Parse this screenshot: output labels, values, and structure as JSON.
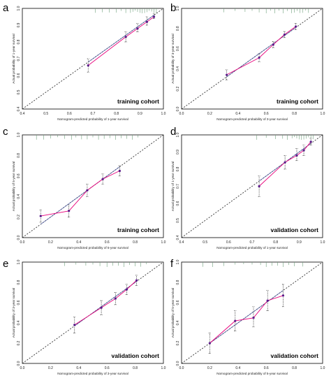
{
  "chart_data": [
    {
      "panel": "a",
      "type": "scatter",
      "cohort_label": "training cohort",
      "xlabel": "Nomogram-predicted probability of 1-year survival",
      "ylabel": "Actual probability of 1-year survival",
      "xlim": [
        0.4,
        1.0
      ],
      "ylim": [
        0.4,
        1.0
      ],
      "xticks": [
        "0.4",
        "0.5",
        "0.6",
        "0.7",
        "0.8",
        "0.9",
        "1.0"
      ],
      "yticks": [
        "0.4",
        "0.5",
        "0.6",
        "0.7",
        "0.8",
        "0.9",
        "1.0"
      ],
      "x": [
        0.68,
        0.84,
        0.89,
        0.93,
        0.96
      ],
      "y": [
        0.66,
        0.83,
        0.88,
        0.92,
        0.95
      ],
      "ci_low": [
        0.62,
        0.8,
        0.86,
        0.9,
        0.94
      ],
      "ci_high": [
        0.7,
        0.86,
        0.91,
        0.95,
        0.97
      ],
      "rug": [
        0.71,
        0.74,
        0.77,
        0.8,
        0.82,
        0.84,
        0.86,
        0.87,
        0.88,
        0.89,
        0.9,
        0.91,
        0.92,
        0.93,
        0.94,
        0.95,
        0.96,
        0.97
      ]
    },
    {
      "panel": "b",
      "type": "scatter",
      "cohort_label": "training cohort",
      "xlabel": "Nomogram-predicted probability of 3-year survival",
      "ylabel": "Actual probability of 3-year survival",
      "xlim": [
        0.0,
        1.0
      ],
      "ylim": [
        0.0,
        1.0
      ],
      "xticks": [
        "0.0",
        "0.2",
        "0.4",
        "0.6",
        "0.8",
        "1.0"
      ],
      "yticks": [
        "0.0",
        "0.2",
        "0.4",
        "0.6",
        "0.8",
        "1.0"
      ],
      "x": [
        0.32,
        0.55,
        0.65,
        0.73,
        0.81
      ],
      "y": [
        0.34,
        0.51,
        0.64,
        0.74,
        0.82
      ],
      "ci_low": [
        0.29,
        0.47,
        0.61,
        0.71,
        0.79
      ],
      "ci_high": [
        0.39,
        0.55,
        0.67,
        0.77,
        0.85
      ],
      "rug": [
        0.3,
        0.38,
        0.45,
        0.5,
        0.55,
        0.6,
        0.63,
        0.66,
        0.69,
        0.72,
        0.75,
        0.78,
        0.8,
        0.82,
        0.84,
        0.86,
        0.88,
        0.9
      ]
    },
    {
      "panel": "c",
      "type": "scatter",
      "cohort_label": "training cohort",
      "xlabel": "Nomogram-predicted probability of 5-year survival",
      "ylabel": "Actual probability of 5-year survival",
      "xlim": [
        0.0,
        1.0
      ],
      "ylim": [
        0.0,
        1.0
      ],
      "xticks": [
        "0.0",
        "0.2",
        "0.4",
        "0.6",
        "0.8",
        "1.0"
      ],
      "yticks": [
        "0.0",
        "0.2",
        "0.4",
        "0.6",
        "0.8",
        "1.0"
      ],
      "x": [
        0.13,
        0.33,
        0.46,
        0.57,
        0.69
      ],
      "y": [
        0.21,
        0.26,
        0.46,
        0.57,
        0.65
      ],
      "ci_low": [
        0.15,
        0.2,
        0.4,
        0.52,
        0.6
      ],
      "ci_high": [
        0.27,
        0.32,
        0.52,
        0.62,
        0.7
      ],
      "rug": [
        0.1,
        0.15,
        0.2,
        0.25,
        0.3,
        0.35,
        0.38,
        0.42,
        0.46,
        0.5,
        0.54,
        0.58,
        0.62,
        0.66,
        0.7,
        0.74,
        0.78,
        0.82
      ]
    },
    {
      "panel": "d",
      "type": "scatter",
      "cohort_label": "validation cohort",
      "xlabel": "Nomogram-predicted probability of 1-year survival",
      "ylabel": "Actual probability of 1-year survival",
      "xlim": [
        0.4,
        1.0
      ],
      "ylim": [
        0.4,
        1.0
      ],
      "xticks": [
        "0.4",
        "0.5",
        "0.6",
        "0.7",
        "0.8",
        "0.9",
        "1.0"
      ],
      "yticks": [
        "0.4",
        "0.5",
        "0.6",
        "0.7",
        "0.8",
        "0.9",
        "1.0"
      ],
      "x": [
        0.73,
        0.84,
        0.89,
        0.92,
        0.95
      ],
      "y": [
        0.7,
        0.84,
        0.88,
        0.91,
        0.96
      ],
      "ci_low": [
        0.64,
        0.8,
        0.85,
        0.88,
        0.94
      ],
      "ci_high": [
        0.76,
        0.88,
        0.92,
        0.94,
        0.98
      ],
      "rug": [
        0.72,
        0.76,
        0.8,
        0.83,
        0.85,
        0.87,
        0.88,
        0.89,
        0.9,
        0.91,
        0.92,
        0.93,
        0.94,
        0.95,
        0.96
      ]
    },
    {
      "panel": "e",
      "type": "scatter",
      "cohort_label": "validation cohort",
      "xlabel": "Nomogram-predicted probability of 3-year survival",
      "ylabel": "Actual probability of 3-year survival",
      "xlim": [
        0.0,
        1.0
      ],
      "ylim": [
        0.0,
        1.0
      ],
      "xticks": [
        "0.0",
        "0.2",
        "0.4",
        "0.6",
        "0.8",
        "1.0"
      ],
      "yticks": [
        "0.0",
        "0.2",
        "0.4",
        "0.6",
        "0.8",
        "1.0"
      ],
      "x": [
        0.37,
        0.56,
        0.66,
        0.74,
        0.81
      ],
      "y": [
        0.38,
        0.55,
        0.64,
        0.73,
        0.82
      ],
      "ci_low": [
        0.3,
        0.48,
        0.58,
        0.68,
        0.77
      ],
      "ci_high": [
        0.46,
        0.62,
        0.7,
        0.78,
        0.87
      ],
      "rug": [
        0.3,
        0.38,
        0.45,
        0.5,
        0.55,
        0.6,
        0.64,
        0.68,
        0.72,
        0.76,
        0.8,
        0.84,
        0.88
      ]
    },
    {
      "panel": "f",
      "type": "scatter",
      "cohort_label": "validation cohort",
      "xlabel": "Nomogram-predicted probability of 5-year survival",
      "ylabel": "Actual probability of 5-year survival",
      "xlim": [
        0.0,
        1.0
      ],
      "ylim": [
        0.0,
        1.0
      ],
      "xticks": [
        "0.0",
        "0.2",
        "0.4",
        "0.6",
        "0.8",
        "1.0"
      ],
      "yticks": [
        "0.0",
        "0.2",
        "0.4",
        "0.6",
        "0.8",
        "1.0"
      ],
      "x": [
        0.2,
        0.38,
        0.51,
        0.61,
        0.72
      ],
      "y": [
        0.2,
        0.42,
        0.45,
        0.62,
        0.67
      ],
      "ci_low": [
        0.1,
        0.32,
        0.36,
        0.52,
        0.56
      ],
      "ci_high": [
        0.3,
        0.52,
        0.56,
        0.72,
        0.78
      ],
      "rug": [
        0.15,
        0.22,
        0.3,
        0.38,
        0.44,
        0.5,
        0.56,
        0.6,
        0.64,
        0.68,
        0.72,
        0.76,
        0.8,
        0.86
      ]
    }
  ],
  "colors": {
    "series_line": "#e8007a",
    "ideal_line": "#3a4a9a",
    "points": "#5a1a8a",
    "rug": "#6fa07c",
    "diagonal": "#333333"
  }
}
